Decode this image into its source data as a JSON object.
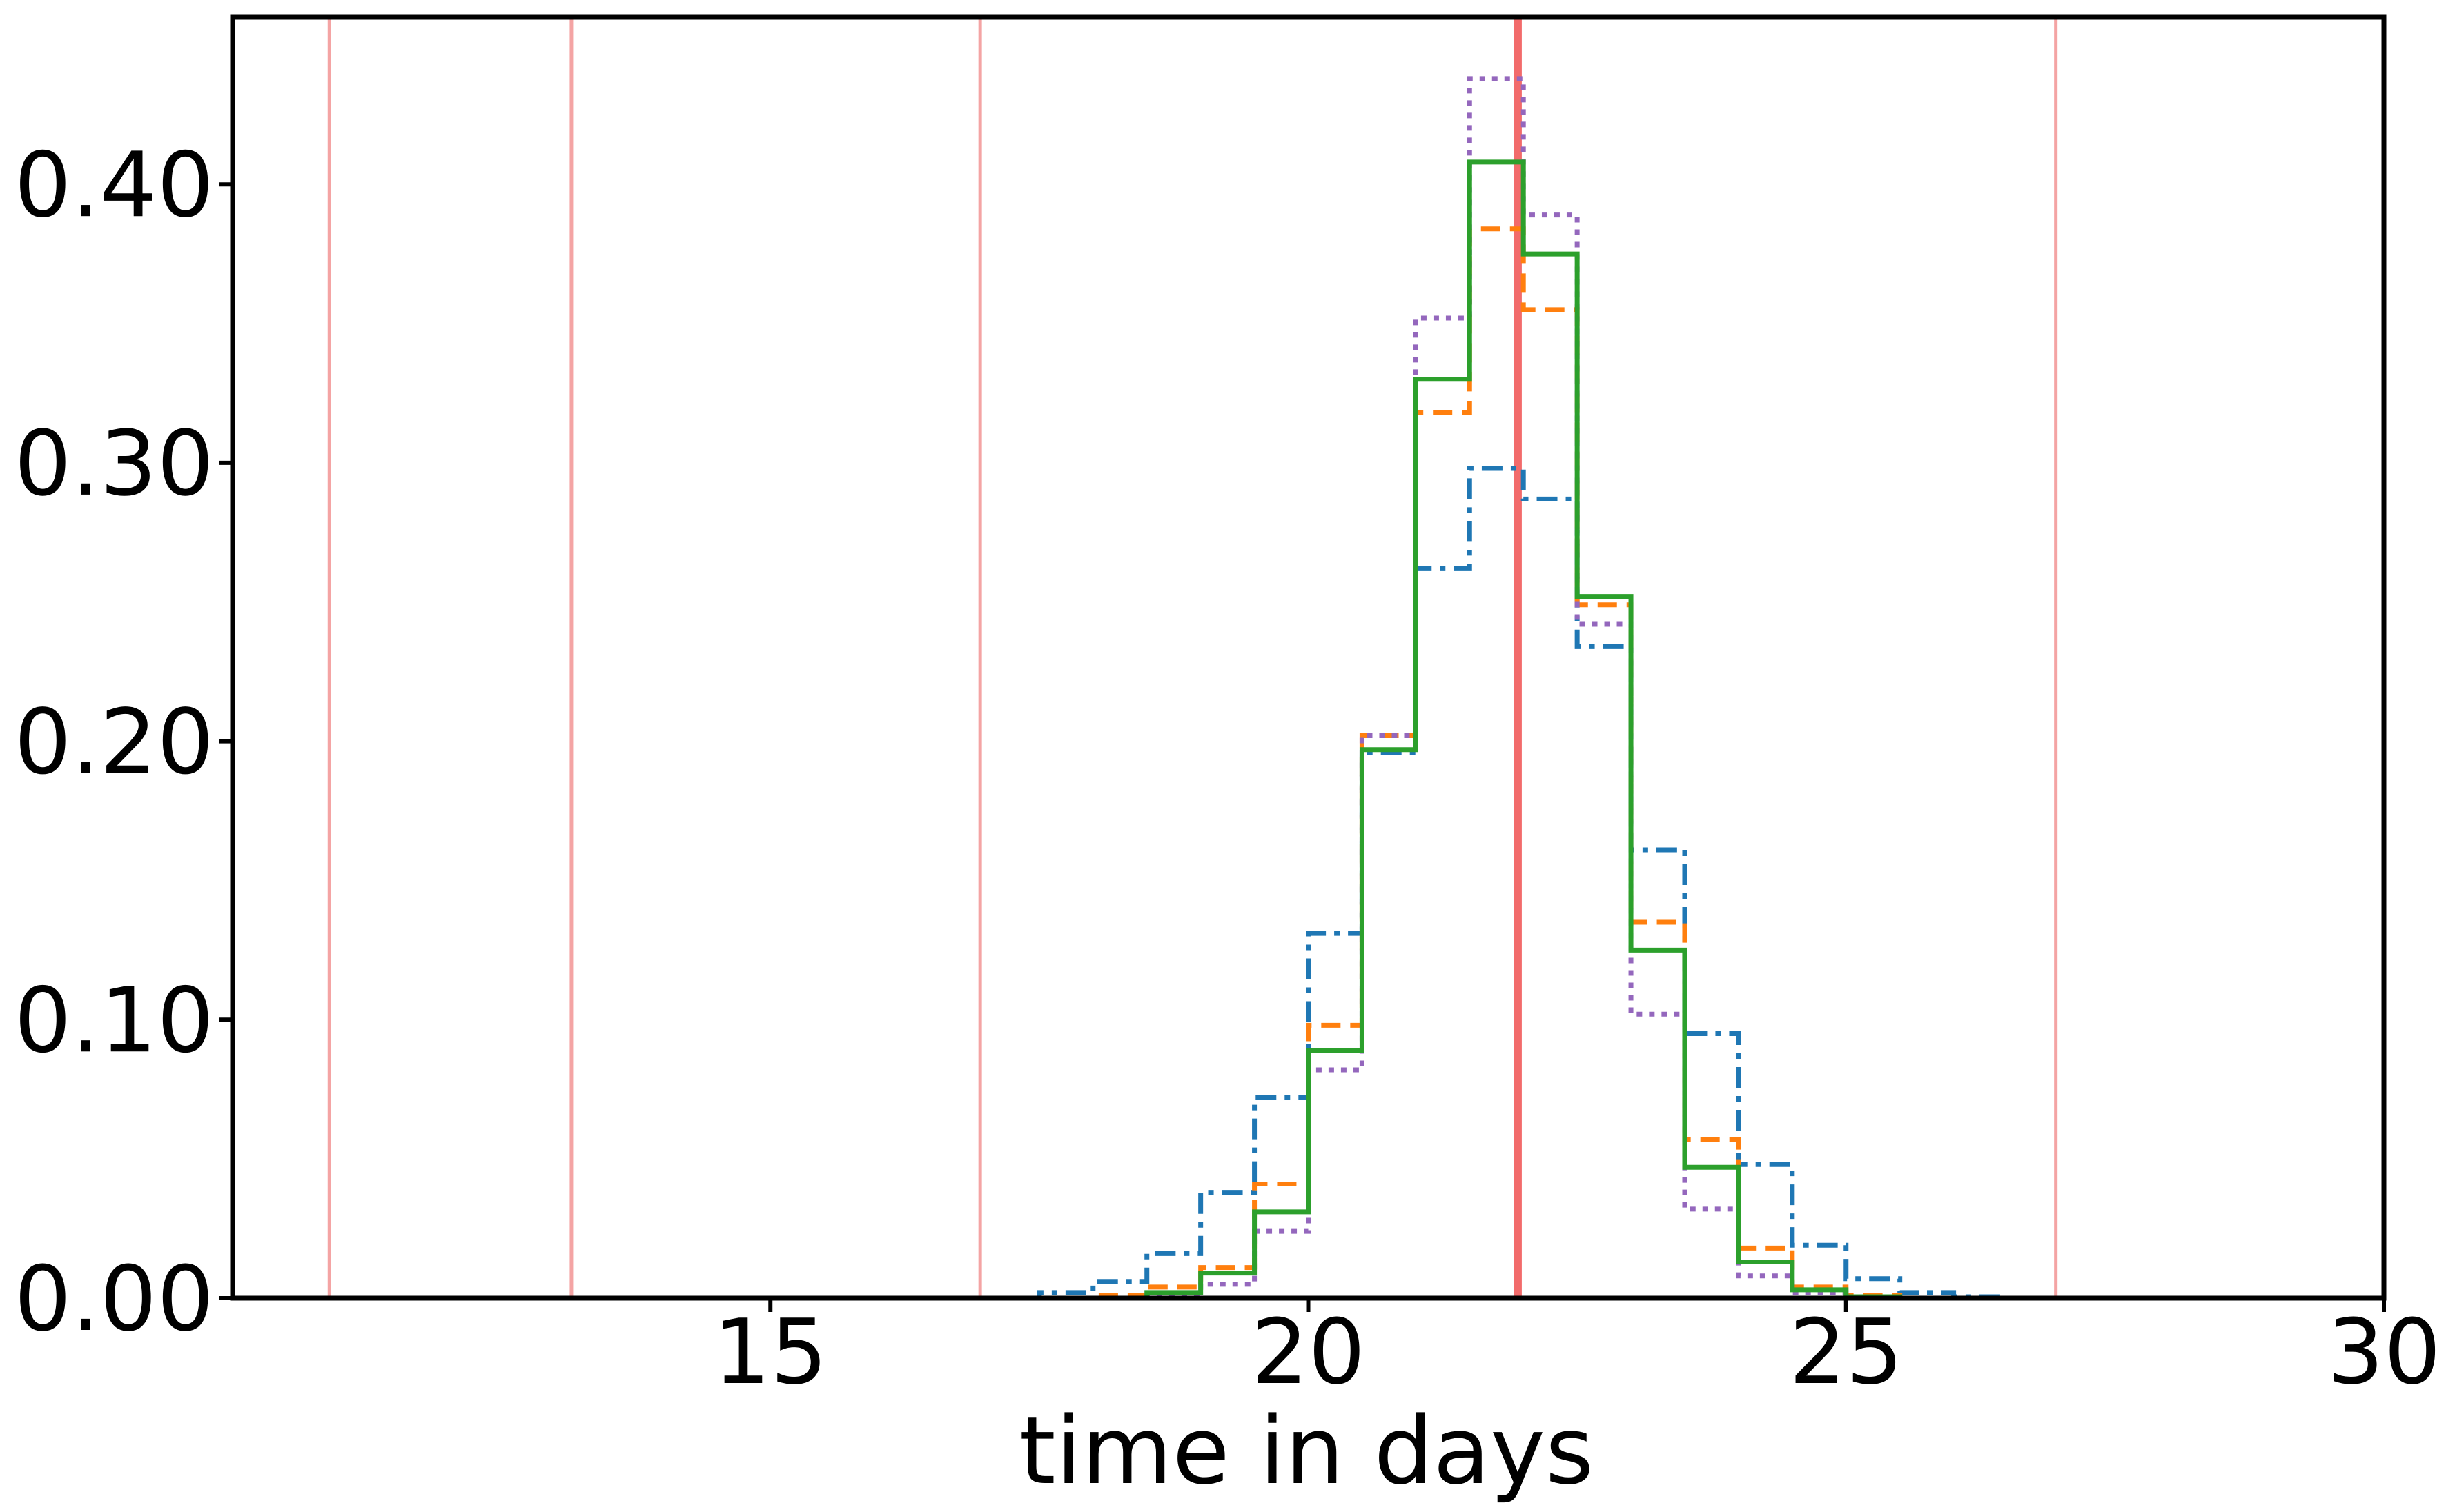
{
  "chart_data": {
    "type": "histogram",
    "xlabel": "time in days",
    "ylabel": "",
    "xlim": [
      10,
      30
    ],
    "ylim": [
      0,
      0.46
    ],
    "x_ticks": [
      15,
      20,
      25,
      30
    ],
    "x_tick_labels": [
      "15",
      "20",
      "25",
      "30"
    ],
    "y_ticks": [
      0,
      0.1,
      0.2,
      0.3,
      0.4
    ],
    "y_tick_labels": [
      "0.00",
      "0.10",
      "0.20",
      "0.30",
      "0.40"
    ],
    "grid": false,
    "legend": "none",
    "vertical_lines": [
      {
        "x": 10.9,
        "color": "#f4a4a4",
        "emphasis": "thin"
      },
      {
        "x": 13.15,
        "color": "#f4a4a4",
        "emphasis": "thin"
      },
      {
        "x": 16.95,
        "color": "#f4a4a4",
        "emphasis": "thin"
      },
      {
        "x": 21.95,
        "color": "#f26b6b",
        "emphasis": "thick"
      },
      {
        "x": 26.95,
        "color": "#f4a4a4",
        "emphasis": "thin"
      }
    ],
    "bin_edges": [
      17.0,
      17.5,
      18.0,
      18.5,
      19.0,
      19.5,
      20.0,
      20.5,
      21.0,
      21.5,
      22.0,
      22.5,
      23.0,
      23.5,
      24.0,
      24.5,
      25.0,
      25.5,
      26.0,
      26.5,
      27.0
    ],
    "series": [
      {
        "style": "dashdot",
        "color": "#1f77b4",
        "values": [
          0.0,
          0.002,
          0.006,
          0.016,
          0.038,
          0.072,
          0.131,
          0.196,
          0.262,
          0.298,
          0.287,
          0.234,
          0.161,
          0.095,
          0.048,
          0.019,
          0.007,
          0.002,
          0.0005,
          0.0
        ]
      },
      {
        "style": "dashed",
        "color": "#ff7f0e",
        "values": [
          0.0,
          0.0,
          0.001,
          0.004,
          0.011,
          0.041,
          0.098,
          0.202,
          0.318,
          0.384,
          0.355,
          0.249,
          0.135,
          0.057,
          0.018,
          0.004,
          0.001,
          0.0,
          0.0,
          0.0
        ]
      },
      {
        "style": "dotted",
        "color": "#9467bd",
        "values": [
          0.0,
          0.0,
          0.0,
          0.001,
          0.005,
          0.024,
          0.082,
          0.202,
          0.352,
          0.438,
          0.389,
          0.242,
          0.102,
          0.032,
          0.008,
          0.002,
          0.0,
          0.0,
          0.0,
          0.0
        ]
      },
      {
        "style": "solid",
        "color": "#2ca02c",
        "values": [
          0.0,
          0.0,
          0.0,
          0.002,
          0.009,
          0.031,
          0.089,
          0.197,
          0.33,
          0.408,
          0.375,
          0.252,
          0.125,
          0.047,
          0.013,
          0.003,
          0.0005,
          0.0,
          0.0,
          0.0
        ]
      }
    ]
  }
}
